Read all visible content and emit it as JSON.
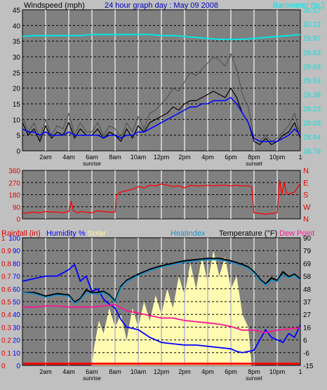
{
  "colors": {
    "background": "#c0c0c0",
    "plot_background": "#808080",
    "gridline": "#000000",
    "wind_speed": "#000000",
    "wind_gust": "#555555",
    "wind_avg": "#0000ff",
    "barometer": "#00e5e5",
    "wind_direction": "#ff0000",
    "rainfall": "#ff0000",
    "humidity": "#0000ff",
    "solar": "#fffbb0",
    "heatindex": "#1e90c8",
    "temperature": "#000000",
    "dewpoint": "#ff1493"
  },
  "chart_data": [
    {
      "type": "line",
      "title": "24 hour graph day : May 09 2008",
      "ylabel": "Windspeed (mph)",
      "y2label": "Barometer (in.)",
      "ylim": [
        0,
        45
      ],
      "y_ticks": [
        "0",
        "5",
        "10",
        "15",
        "20",
        "25",
        "30",
        "35",
        "40",
        "45"
      ],
      "y2_ticks": [
        "28.79",
        "28.94",
        "29.09",
        "29.23",
        "29.38",
        "29.53",
        "29.68",
        "29.83",
        "29.97",
        "30.12",
        "30.27"
      ],
      "x_labels": [
        "2am",
        "4am",
        "6am",
        "8am",
        "10am",
        "12pm",
        "2pm",
        "4pm",
        "6pm",
        "8pm",
        "10pm"
      ],
      "x_end_label": "1",
      "markers": [
        "sunrise",
        "sunset"
      ],
      "grid": true,
      "series": [
        {
          "key": "wind_gust",
          "x": [
            0,
            0.5,
            1,
            1.5,
            2,
            2.5,
            3,
            3.5,
            4,
            4.5,
            5,
            5.5,
            6,
            6.5,
            7,
            7.5,
            8,
            8.5,
            9,
            9.5,
            10,
            10.5,
            11,
            11.5,
            12,
            12.5,
            13,
            13.5,
            14,
            14.5,
            15,
            15.5,
            16,
            16.5,
            17,
            17.5,
            18,
            18.5,
            19,
            19.5,
            20,
            20.5,
            21,
            21.5,
            22,
            22.5,
            23,
            23.5,
            24
          ],
          "values": [
            11,
            6,
            9,
            4,
            10,
            5,
            8,
            7,
            12,
            5,
            9,
            6,
            6,
            9,
            5,
            8,
            7,
            4,
            9,
            6,
            11,
            7,
            12,
            13,
            15,
            17,
            20,
            19,
            22,
            25,
            24,
            26,
            28,
            30,
            29,
            27,
            31,
            26,
            18,
            14,
            4,
            3,
            5,
            3,
            4,
            6,
            8,
            12,
            5
          ]
        },
        {
          "key": "wind_speed",
          "x": [
            0,
            0.5,
            1,
            1.5,
            2,
            2.5,
            3,
            3.5,
            4,
            4.5,
            5,
            5.5,
            6,
            6.5,
            7,
            7.5,
            8,
            8.5,
            9,
            9.5,
            10,
            10.5,
            11,
            11.5,
            12,
            12.5,
            13,
            13.5,
            14,
            14.5,
            15,
            15.5,
            16,
            16.5,
            17,
            17.5,
            18,
            18.5,
            19,
            19.5,
            20,
            20.5,
            21,
            21.5,
            22,
            22.5,
            23,
            23.5,
            24
          ],
          "values": [
            9,
            5,
            7,
            3,
            8,
            4,
            6,
            5,
            9,
            4,
            7,
            5,
            5,
            7,
            4,
            6,
            5,
            3,
            7,
            4,
            8,
            6,
            9,
            10,
            11,
            12,
            14,
            13,
            15,
            16,
            16,
            17,
            18,
            19,
            18,
            17,
            20,
            17,
            12,
            9,
            3,
            2,
            4,
            2,
            3,
            5,
            6,
            9,
            4
          ]
        },
        {
          "key": "wind_avg",
          "x": [
            0,
            0.5,
            1,
            1.5,
            2,
            2.5,
            3,
            3.5,
            4,
            4.5,
            5,
            5.5,
            6,
            6.5,
            7,
            7.5,
            8,
            8.5,
            9,
            9.5,
            10,
            10.5,
            11,
            11.5,
            12,
            12.5,
            13,
            13.5,
            14,
            14.5,
            15,
            15.5,
            16,
            16.5,
            17,
            17.5,
            18,
            18.5,
            19,
            19.5,
            20,
            20.5,
            21,
            21.5,
            22,
            22.5,
            23,
            23.5,
            24
          ],
          "values": [
            7,
            6,
            6,
            5,
            6,
            5,
            5,
            5,
            6,
            5,
            5,
            5,
            5,
            5,
            4,
            5,
            5,
            4,
            5,
            5,
            6,
            6,
            7,
            8,
            9,
            10,
            11,
            12,
            13,
            14,
            14,
            15,
            15,
            16,
            16,
            16,
            17,
            15,
            12,
            9,
            4,
            3,
            3,
            3,
            3,
            4,
            5,
            7,
            5
          ]
        },
        {
          "key": "barometer",
          "x": [
            0,
            1,
            2,
            3,
            4,
            5,
            6,
            7,
            8,
            9,
            10,
            11,
            12,
            13,
            14,
            15,
            16,
            17,
            18,
            19,
            20,
            21,
            22,
            23,
            24
          ],
          "values": [
            29.99,
            30.0,
            30.0,
            30.0,
            30.0,
            30.0,
            30.01,
            30.01,
            30.01,
            30.01,
            30.01,
            30.01,
            30.0,
            30.0,
            29.99,
            29.98,
            29.97,
            29.96,
            29.96,
            29.96,
            29.97,
            29.98,
            29.99,
            30.0,
            30.01
          ]
        }
      ]
    },
    {
      "type": "line",
      "ylim": [
        0,
        360
      ],
      "y_ticks": [
        "0",
        "90",
        "180",
        "270",
        "360"
      ],
      "y2_ticks": [
        "N",
        "W",
        "S",
        "E",
        "N"
      ],
      "grid": true,
      "series": [
        {
          "key": "wind_direction",
          "x": [
            0,
            0.5,
            1,
            1.5,
            2,
            2.5,
            3,
            3.5,
            4,
            4.2,
            4.4,
            4.6,
            4.8,
            5,
            5.5,
            6,
            6.5,
            7,
            7.5,
            8,
            8.1,
            8.5,
            9,
            9.5,
            10,
            10.5,
            11,
            11.5,
            12,
            12.5,
            13,
            13.5,
            14,
            14.5,
            15,
            15.5,
            16,
            16.5,
            17,
            17.5,
            18,
            18.5,
            19,
            19.5,
            19.8,
            20,
            20.5,
            21,
            21.5,
            22,
            22.2,
            22.4,
            22.6,
            22.8,
            23,
            23.5,
            24
          ],
          "values": [
            40,
            45,
            50,
            45,
            55,
            50,
            50,
            45,
            55,
            130,
            60,
            50,
            45,
            55,
            50,
            45,
            60,
            55,
            50,
            50,
            175,
            200,
            210,
            220,
            240,
            230,
            250,
            245,
            260,
            250,
            240,
            245,
            230,
            250,
            245,
            245,
            250,
            245,
            250,
            250,
            245,
            250,
            245,
            245,
            240,
            45,
            40,
            35,
            40,
            45,
            290,
            180,
            270,
            190,
            185,
            200,
            265
          ]
        }
      ]
    },
    {
      "type": "line",
      "labels": {
        "rainfall": "Rainfall (in)",
        "humidity": "Humidity %",
        "solar": "Solar",
        "heatindex": "Heatindex",
        "temperature": "Temperature (°F)",
        "dewpoint": "Dew Point"
      },
      "ylim": [
        0,
        100
      ],
      "y_ticks": [
        "0",
        "10",
        "20",
        "30",
        "40",
        "50",
        "60",
        "70",
        "80",
        "90",
        "100"
      ],
      "y_rain_ticks": [
        "0",
        "0.1",
        "0.2",
        "0.3",
        "0.4",
        "0.5",
        "0.6",
        "0.7",
        "0.8",
        "0.9",
        "1"
      ],
      "y2lim": [
        -15,
        90
      ],
      "y2_ticks": [
        "-15",
        "-6",
        "6",
        "16",
        "27",
        "37",
        "48",
        "58",
        "69",
        "79",
        "90"
      ],
      "x_labels": [
        "2am",
        "4am",
        "6am",
        "8am",
        "10am",
        "12pm",
        "2pm",
        "4pm",
        "6pm",
        "8pm",
        "10pm"
      ],
      "x_end_label": "1",
      "markers": [
        "sunrise",
        "sunset"
      ],
      "grid": true,
      "series": [
        {
          "key": "solar",
          "x": [
            0,
            6,
            6.2,
            6.6,
            7,
            7.5,
            8,
            8.5,
            9,
            9.5,
            10,
            10.5,
            11,
            11.5,
            12,
            12.5,
            13,
            13.5,
            14,
            14.5,
            15,
            15.5,
            16,
            16.5,
            17,
            17.5,
            18,
            18.5,
            19,
            19.5,
            19.8,
            24
          ],
          "values": [
            0,
            0,
            15,
            35,
            25,
            45,
            30,
            40,
            20,
            45,
            30,
            50,
            35,
            55,
            40,
            60,
            45,
            70,
            55,
            80,
            60,
            85,
            65,
            90,
            70,
            85,
            60,
            70,
            40,
            30,
            0,
            0
          ]
        },
        {
          "key": "humidity",
          "x": [
            0,
            1,
            2,
            3,
            4,
            4.5,
            5,
            5.5,
            6,
            6.5,
            7,
            7.5,
            8,
            8.5,
            9,
            10,
            11,
            12,
            13,
            14,
            15,
            16,
            17,
            18,
            18.5,
            19,
            19.5,
            20,
            20.5,
            21,
            21.5,
            22,
            22.5,
            23,
            23.5,
            24
          ],
          "values": [
            66,
            68,
            70,
            70,
            75,
            79,
            66,
            70,
            58,
            60,
            52,
            48,
            45,
            36,
            30,
            28,
            22,
            18,
            17,
            16,
            16,
            15,
            14,
            13,
            11,
            10,
            11,
            12,
            20,
            28,
            22,
            20,
            18,
            25,
            22,
            32
          ]
        },
        {
          "key": "rainfall",
          "x": [
            0,
            24
          ],
          "values": [
            0,
            0
          ]
        },
        {
          "key": "temperature",
          "x": [
            0,
            1,
            2,
            3,
            4,
            4.5,
            5,
            5.5,
            6,
            6.5,
            7,
            7.5,
            8,
            8.5,
            9,
            10,
            11,
            12,
            13,
            14,
            15,
            16,
            17,
            18,
            19,
            19.5,
            20,
            20.5,
            21,
            21.5,
            22,
            22.5,
            23,
            23.5,
            24
          ],
          "values": [
            45,
            45,
            42,
            44,
            43,
            37,
            40,
            47,
            45,
            45,
            46,
            43,
            38,
            50,
            55,
            60,
            64,
            67,
            69,
            71,
            72,
            73,
            73,
            71,
            68,
            66,
            62,
            56,
            52,
            57,
            55,
            62,
            58,
            60,
            56
          ]
        },
        {
          "key": "heatindex",
          "x": [
            0,
            1,
            2,
            3,
            4,
            4.5,
            5,
            5.5,
            6,
            6.5,
            7,
            7.5,
            8,
            8.5,
            9,
            10,
            11,
            12,
            13,
            14,
            15,
            16,
            17,
            18,
            19,
            19.5,
            20,
            20.5,
            21,
            21.5,
            22,
            22.5,
            23,
            23.5,
            24
          ],
          "values": [
            45,
            44,
            41,
            43,
            42,
            36,
            39,
            45,
            44,
            44,
            45,
            42,
            37,
            49,
            54,
            59,
            63,
            66,
            68,
            70,
            71,
            72,
            72,
            70,
            67,
            65,
            61,
            55,
            51,
            55,
            54,
            60,
            57,
            59,
            55
          ]
        },
        {
          "key": "dewpoint",
          "x": [
            0,
            1,
            2,
            3,
            4,
            5,
            6,
            7,
            8,
            9,
            10,
            11,
            12,
            13,
            14,
            15,
            16,
            17,
            18,
            19,
            20,
            21,
            22,
            23,
            24
          ],
          "values": [
            33,
            33,
            34,
            34,
            33,
            33,
            33,
            34,
            35,
            30,
            28,
            26,
            24,
            24,
            22,
            21,
            20,
            19,
            17,
            14,
            14,
            12,
            14,
            15,
            16
          ]
        }
      ]
    }
  ]
}
